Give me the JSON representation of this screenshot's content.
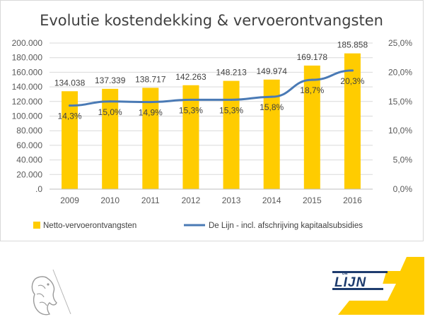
{
  "chart_data": {
    "type": "bar",
    "title": "Evolutie kostendekking & vervoerontvangsten",
    "categories": [
      "2009",
      "2010",
      "2011",
      "2012",
      "2013",
      "2014",
      "2015",
      "2016"
    ],
    "series": [
      {
        "name": "Netto-vervoerontvangsten",
        "type": "bar",
        "axis": "left",
        "color": "#ffcc00",
        "values": [
          134038,
          137339,
          138717,
          142263,
          148213,
          149974,
          169178,
          185858
        ],
        "labels": [
          "134.038",
          "137.339",
          "138.717",
          "142.263",
          "148.213",
          "149.974",
          "169.178",
          "185.858"
        ]
      },
      {
        "name": "De Lijn - incl. afschrijving kapitaalsubsidies",
        "type": "line",
        "axis": "right",
        "color": "#4a7ab5",
        "values": [
          14.3,
          15.0,
          14.9,
          15.3,
          15.3,
          15.8,
          18.7,
          20.3
        ],
        "labels": [
          "14,3%",
          "15,0%",
          "14,9%",
          "15,3%",
          "15,3%",
          "15,8%",
          "18,7%",
          "20,3%"
        ]
      }
    ],
    "y_left": {
      "ylim": [
        0,
        200000
      ],
      "ticks": [
        0,
        20000,
        40000,
        60000,
        80000,
        100000,
        120000,
        140000,
        160000,
        180000,
        200000
      ],
      "tick_labels": [
        ".0",
        "20.000",
        "40.000",
        "60.000",
        "80.000",
        "100.000",
        "120.000",
        "140.000",
        "160.000",
        "180.000",
        "200.000"
      ]
    },
    "y_right": {
      "ylim": [
        0,
        25
      ],
      "ticks": [
        0,
        5,
        10,
        15,
        20,
        25
      ],
      "tick_labels": [
        "0,0%",
        "5,0%",
        "10,0%",
        "15,0%",
        "20,0%",
        "25,0%"
      ]
    },
    "grid": true,
    "legend_position": "bottom"
  },
  "logos": {
    "flemish_lion": "flemish-government-lion-logo",
    "delijn": {
      "small_text": "DE",
      "text": "LIJN",
      "accent": "#ffcc00",
      "dark": "#1e3c6e"
    }
  }
}
